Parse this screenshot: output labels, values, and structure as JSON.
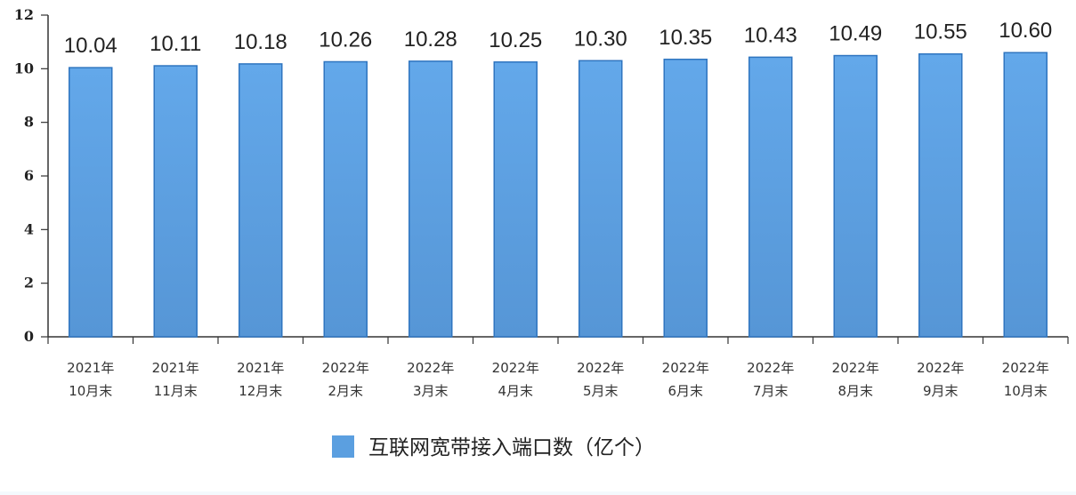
{
  "chart_data": {
    "type": "bar",
    "categories": [
      [
        "2021年",
        "10月末"
      ],
      [
        "2021年",
        "11月末"
      ],
      [
        "2021年",
        "12月末"
      ],
      [
        "2022年",
        "2月末"
      ],
      [
        "2022年",
        "3月末"
      ],
      [
        "2022年",
        "4月末"
      ],
      [
        "2022年",
        "5月末"
      ],
      [
        "2022年",
        "6月末"
      ],
      [
        "2022年",
        "7月末"
      ],
      [
        "2022年",
        "8月末"
      ],
      [
        "2022年",
        "9月末"
      ],
      [
        "2022年",
        "10月末"
      ]
    ],
    "series": [
      {
        "name": "互联网宽带接入端口数（亿个）",
        "values": [
          10.04,
          10.11,
          10.18,
          10.26,
          10.28,
          10.25,
          10.3,
          10.35,
          10.43,
          10.49,
          10.55,
          10.6
        ],
        "labels": [
          "10.04",
          "10.11",
          "10.18",
          "10.26",
          "10.28",
          "10.25",
          "10.30",
          "10.35",
          "10.43",
          "10.49",
          "10.55",
          "10.60"
        ]
      }
    ],
    "ylim": [
      0,
      12
    ],
    "yticks": [
      "0",
      "2",
      "4",
      "6",
      "8",
      "10",
      "12"
    ],
    "grid": false,
    "legend_position": "bottom",
    "colors": {
      "bar": "#5b9fe0",
      "bar_edge": "#2f75c0"
    }
  }
}
